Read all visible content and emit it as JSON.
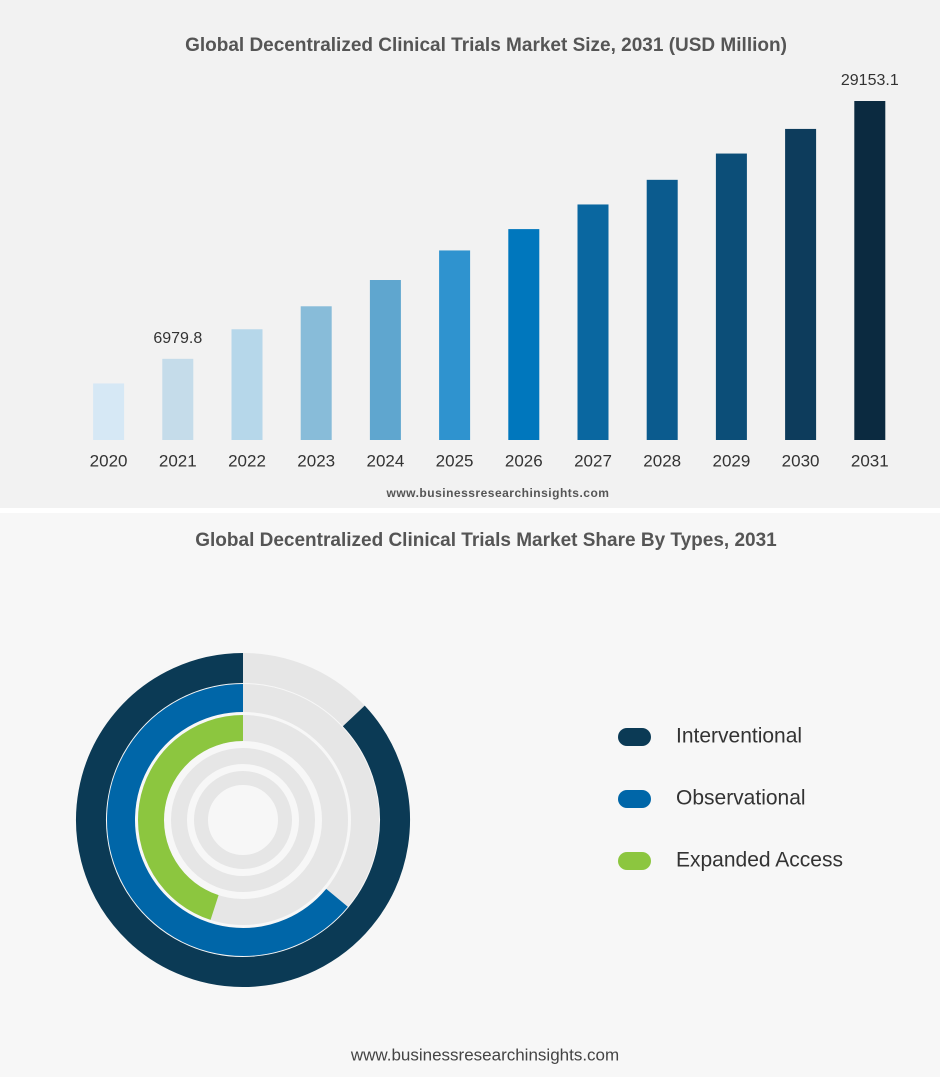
{
  "chart_data": [
    {
      "type": "bar",
      "title": "Global Decentralized Clinical Trials Market Size, 2031 (USD Million)",
      "categories": [
        "2020",
        "2021",
        "2022",
        "2023",
        "2024",
        "2025",
        "2026",
        "2027",
        "2028",
        "2029",
        "2030",
        "2031"
      ],
      "values": [
        4861,
        6979.8,
        9522,
        11499,
        13759,
        16301,
        18137,
        20255,
        22374,
        24634,
        26752,
        29153.1
      ],
      "value_labels": [
        null,
        "6979.8",
        null,
        null,
        null,
        null,
        null,
        null,
        null,
        null,
        null,
        "29153.1"
      ],
      "colors": [
        "#d6e8f5",
        "#c5dcea",
        "#b6d7ea",
        "#88bcd9",
        "#5fa6cf",
        "#2f93cf",
        "#0077bd",
        "#0a67a0",
        "#0b5b8e",
        "#0c4e78",
        "#0d3c5c",
        "#0b2a40"
      ],
      "source": "www.businessresearchinsights.com"
    },
    {
      "type": "radial_bar",
      "title": "Global Decentralized Clinical Trials Market Share By Types, 2031",
      "categories": [
        "Interventional",
        "Observational",
        "Expanded Access"
      ],
      "values": [
        87,
        64,
        45
      ],
      "colors": [
        "#0b3a55",
        "#0066a8",
        "#8cc63f"
      ],
      "source": "www.businessresearchinsights.com"
    }
  ]
}
